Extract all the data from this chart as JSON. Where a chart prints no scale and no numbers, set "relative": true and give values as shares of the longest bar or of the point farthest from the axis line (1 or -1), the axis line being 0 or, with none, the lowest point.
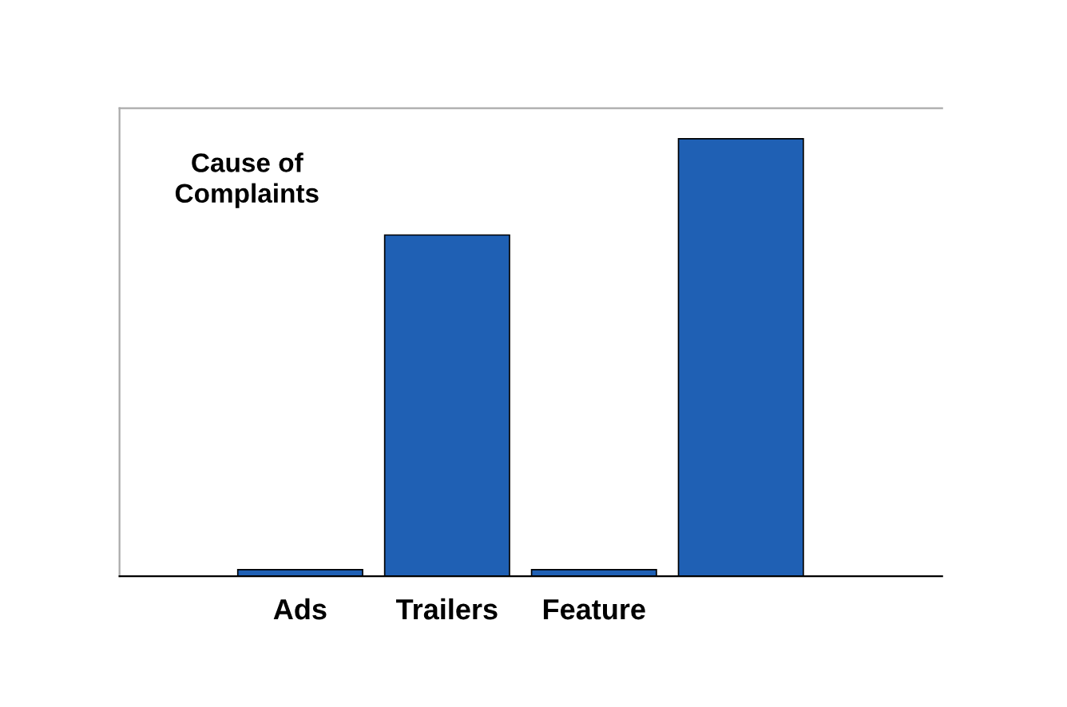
{
  "chart_data": {
    "type": "bar",
    "title": "Cause of\nComplaints",
    "categories": [
      "Ads",
      "Trailers",
      "Feature",
      null
    ],
    "values": [
      0.015,
      0.78,
      0.015,
      1
    ],
    "color": "#1f60b4",
    "relative": true,
    "grid": false,
    "legend": false
  }
}
